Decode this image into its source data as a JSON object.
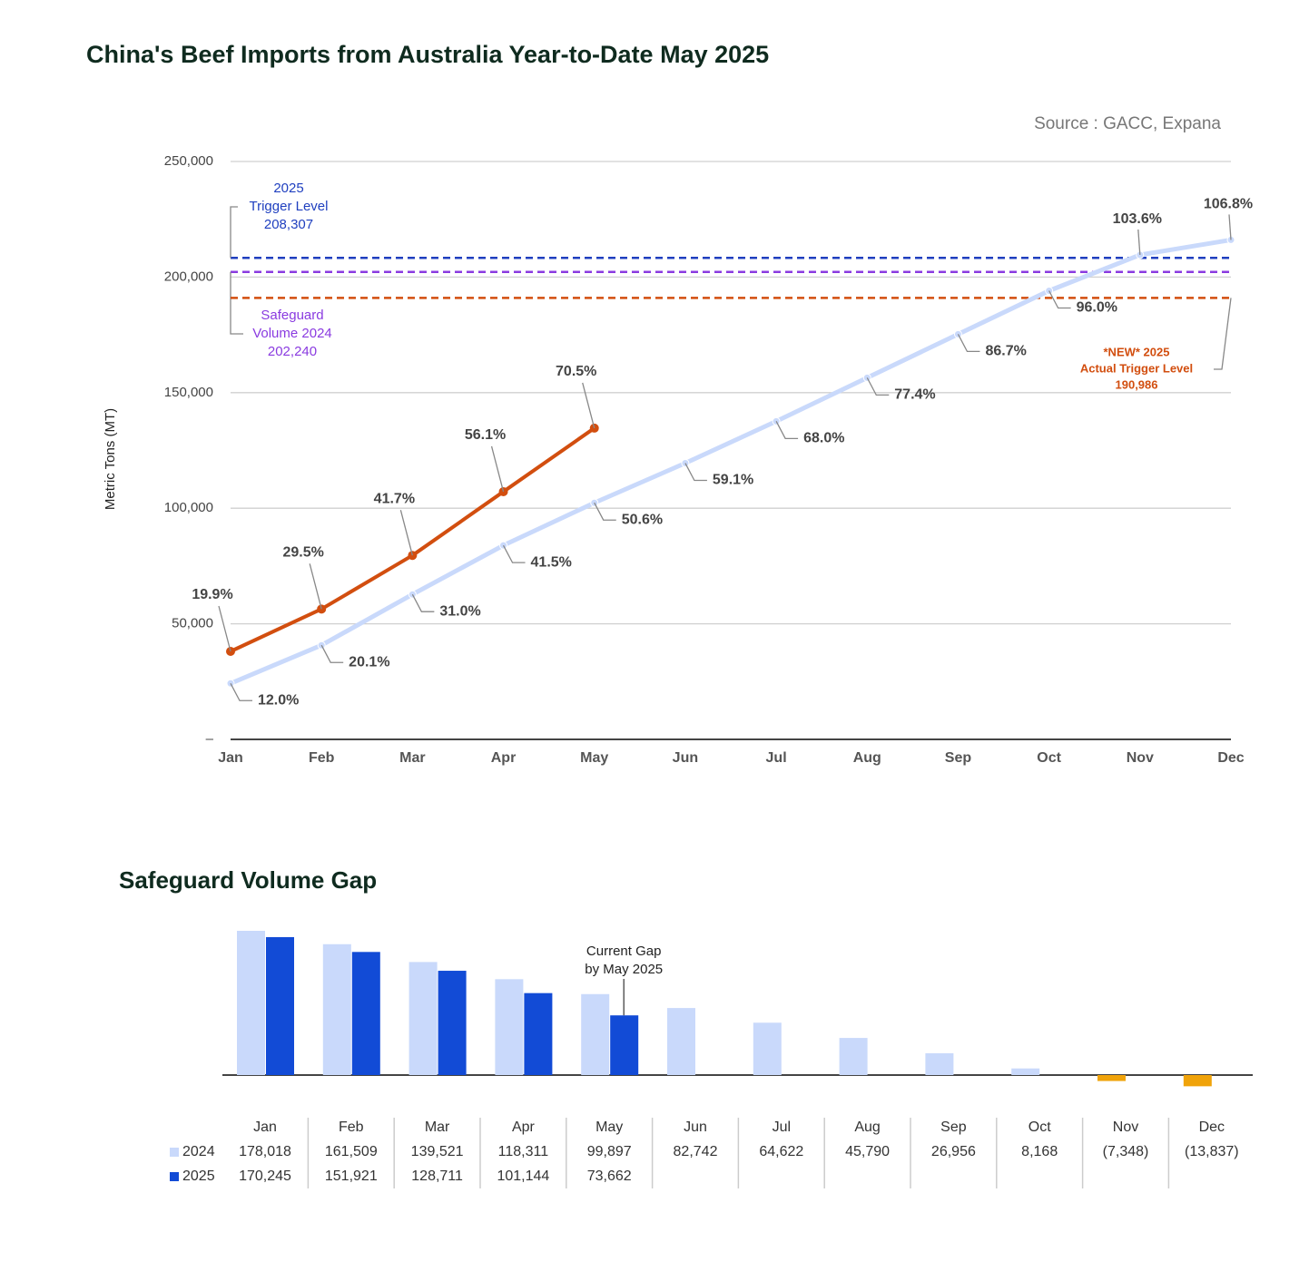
{
  "chart_data": [
    {
      "type": "line",
      "title": "China's Beef Imports from Australia Year-to-Date May 2025",
      "source": "Source : GACC, Expana",
      "y_label": "Metric Tons (MT)",
      "categories": [
        "Jan",
        "Feb",
        "Mar",
        "Apr",
        "May",
        "Jun",
        "Jul",
        "Aug",
        "Sep",
        "Oct",
        "Nov",
        "Dec"
      ],
      "ylim": [
        0,
        250000
      ],
      "yticks": [
        {
          "value": 0,
          "label": "–"
        },
        {
          "value": 50000,
          "label": "50,000"
        },
        {
          "value": 100000,
          "label": "100,000"
        },
        {
          "value": 150000,
          "label": "150,000"
        },
        {
          "value": 200000,
          "label": "200,000"
        },
        {
          "value": 250000,
          "label": "250,000"
        }
      ],
      "grid": true,
      "series": [
        {
          "color": "#c9d9fb",
          "values": [
            24222,
            40731,
            62719,
            83929,
            102343,
            119498,
            137618,
            156450,
            175284,
            194072,
            209588,
            216077
          ],
          "point_labels": [
            "12.0%",
            "20.1%",
            "31.0%",
            "41.5%",
            "50.6%",
            "59.1%",
            "68.0%",
            "77.4%",
            "86.7%",
            "96.0%",
            "103.6%",
            "106.8%"
          ]
        },
        {
          "color": "#d24e0f",
          "values": [
            38062,
            56386,
            79596,
            107163,
            134645,
            null,
            null,
            null,
            null,
            null,
            null,
            null
          ],
          "point_labels": [
            "19.9%",
            "29.5%",
            "41.7%",
            "56.1%",
            "70.5%",
            null,
            null,
            null,
            null,
            null,
            null,
            null
          ]
        }
      ],
      "reference_lines": [
        {
          "value": 208307,
          "color": "#1f3fbf",
          "lines": [
            "2025",
            "Trigger Level",
            "208,307"
          ]
        },
        {
          "value": 202240,
          "color": "#8a3be0",
          "lines": [
            "Safeguard",
            "Volume 2024",
            "202,240"
          ]
        },
        {
          "value": 190986,
          "color": "#d24e0f",
          "lines": [
            "*NEW* 2025",
            "Actual Trigger Level",
            "190,986"
          ]
        }
      ]
    },
    {
      "type": "bar",
      "title": "Safeguard Volume Gap",
      "categories": [
        "Jan",
        "Feb",
        "Mar",
        "Apr",
        "May",
        "Jun",
        "Jul",
        "Aug",
        "Sep",
        "Oct",
        "Nov",
        "Dec"
      ],
      "negative_color": "#f0a30a",
      "series": [
        {
          "name": "2024",
          "color": "#c9d9fb",
          "values": [
            178018,
            161509,
            139521,
            118311,
            99897,
            82742,
            64622,
            45790,
            26956,
            8168,
            -7348,
            -13837
          ],
          "value_labels": [
            "178,018",
            "161,509",
            "139,521",
            "118,311",
            "99,897",
            "82,742",
            "64,622",
            "45,790",
            "26,956",
            "8,168",
            "(7,348)",
            "(13,837)"
          ]
        },
        {
          "name": "2025",
          "color": "#124bd6",
          "values": [
            170245,
            151921,
            128711,
            101144,
            73662,
            null,
            null,
            null,
            null,
            null,
            null,
            null
          ],
          "value_labels": [
            "170,245",
            "151,921",
            "128,711",
            "101,144",
            "73,662",
            null,
            null,
            null,
            null,
            null,
            null,
            null
          ]
        }
      ],
      "annotation": {
        "index": 4,
        "lines": [
          "Current Gap",
          "by May 2025"
        ]
      }
    }
  ]
}
